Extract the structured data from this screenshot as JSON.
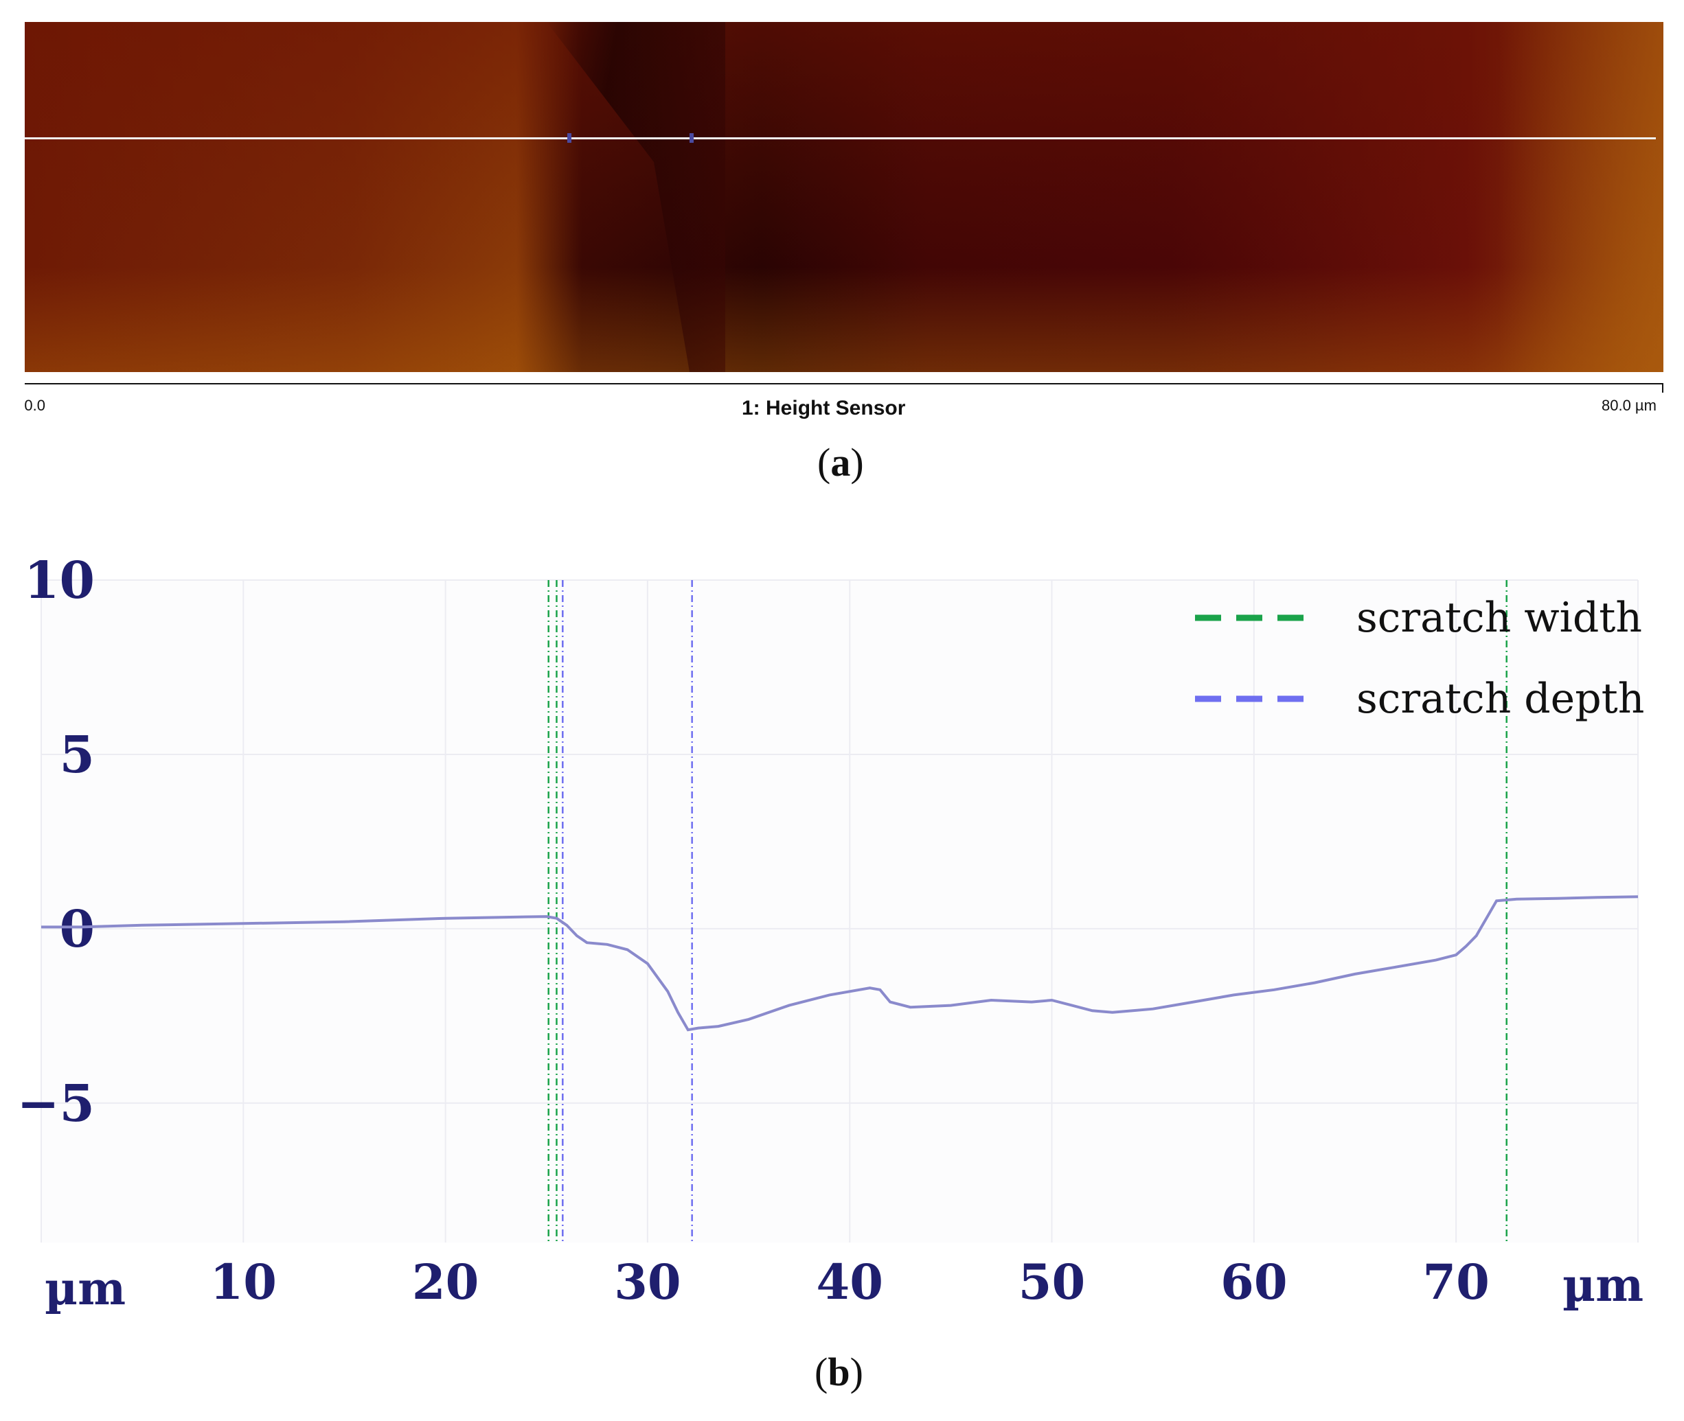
{
  "panel_a": {
    "label_letter": "a",
    "title": "1: Height Sensor",
    "scale_left": "0.0",
    "scale_right": "80.0 µm"
  },
  "panel_b": {
    "label_letter": "b"
  },
  "chart_data": {
    "type": "line",
    "title": "",
    "xlabel_left": "µm",
    "xlabel_right": "µm",
    "ylabel": "",
    "xlim": [
      0,
      79
    ],
    "ylim": [
      -9,
      10
    ],
    "x_ticks": [
      10,
      20,
      30,
      40,
      50,
      60,
      70
    ],
    "y_ticks": [
      10,
      5,
      0,
      -5
    ],
    "grid": true,
    "legend_position": "top-right",
    "colors": {
      "profile": "#8a8acc",
      "scratch_width": "#1aa34a",
      "scratch_depth": "#6e6ef0",
      "axis_text": "#1f1f6e"
    },
    "series": [
      {
        "x": [
          0,
          2,
          5,
          10,
          15,
          20,
          23,
          25,
          25.5,
          26,
          26.5,
          27,
          28,
          29,
          30,
          31,
          31.5,
          32,
          32.5,
          33.5,
          35,
          37,
          39,
          41,
          41.5,
          42,
          43,
          45,
          47,
          49,
          50,
          51,
          52,
          53,
          54,
          55,
          57,
          59,
          61,
          63,
          65,
          67,
          69,
          70,
          70.5,
          71,
          71.5,
          72,
          73,
          75,
          77,
          79
        ],
        "y": [
          0.05,
          0.05,
          0.1,
          0.15,
          0.2,
          0.3,
          0.33,
          0.35,
          0.3,
          0.1,
          -0.2,
          -0.4,
          -0.45,
          -0.6,
          -1.0,
          -1.8,
          -2.4,
          -2.9,
          -2.85,
          -2.8,
          -2.6,
          -2.2,
          -1.9,
          -1.7,
          -1.75,
          -2.1,
          -2.25,
          -2.2,
          -2.05,
          -2.1,
          -2.05,
          -2.2,
          -2.35,
          -2.4,
          -2.35,
          -2.3,
          -2.1,
          -1.9,
          -1.75,
          -1.55,
          -1.3,
          -1.1,
          -0.9,
          -0.75,
          -0.5,
          -0.2,
          0.3,
          0.8,
          0.85,
          0.87,
          0.9,
          0.92
        ]
      }
    ],
    "markers": [
      {
        "name": "scratch width",
        "x": [
          25.1,
          25.5,
          72.5
        ]
      },
      {
        "name": "scratch depth",
        "x": [
          25.8,
          32.2
        ]
      }
    ]
  }
}
